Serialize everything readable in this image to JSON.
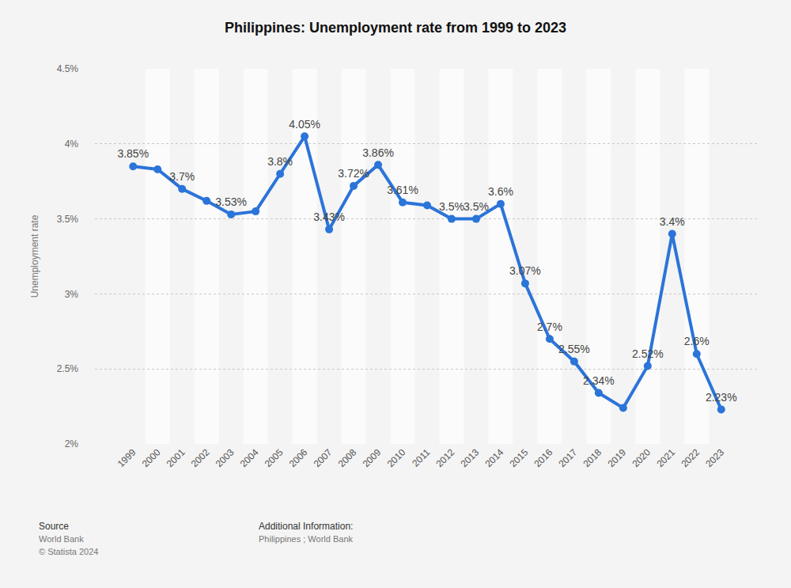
{
  "chart_data": {
    "type": "line",
    "title": "Philippines: Unemployment rate from 1999 to 2023",
    "y_label": "Unemployment rate",
    "categories": [
      "1999",
      "2000",
      "2001",
      "2002",
      "2003",
      "2004",
      "2005",
      "2006",
      "2007",
      "2008",
      "2009",
      "2010",
      "2011",
      "2012",
      "2013",
      "2014",
      "2015",
      "2016",
      "2017",
      "2018",
      "2019",
      "2020",
      "2021",
      "2022",
      "2023"
    ],
    "values": [
      3.85,
      3.83,
      3.7,
      3.62,
      3.53,
      3.55,
      3.8,
      4.05,
      3.43,
      3.72,
      3.86,
      3.61,
      3.59,
      3.5,
      3.5,
      3.6,
      3.07,
      2.7,
      2.55,
      2.34,
      2.24,
      2.52,
      3.4,
      2.6,
      2.23
    ],
    "value_labels": [
      "3.85%",
      null,
      "3.7%",
      null,
      "3.53%",
      null,
      "3.8%",
      "4.05%",
      "3.43%",
      "3.72%",
      "3.86%",
      "3.61%",
      null,
      "3.5%",
      "3.5%",
      "3.6%",
      "3.07%",
      "2.7%",
      "2.55%",
      "2.34%",
      null,
      "2.52%",
      "3.4%",
      "2.6%",
      "2.23%"
    ],
    "data_labels": true,
    "color": "#2b74d9",
    "marker": "circle",
    "line_style": "solid",
    "grid": true,
    "ylim": [
      2,
      4.5
    ],
    "yticks": [
      {
        "value": 2,
        "label": "2%"
      },
      {
        "value": 2.5,
        "label": "2.5%"
      },
      {
        "value": 3,
        "label": "3%"
      },
      {
        "value": 3.5,
        "label": "3.5%"
      },
      {
        "value": 4,
        "label": "4%"
      },
      {
        "value": 4.5,
        "label": "4.5%"
      }
    ],
    "notes": [
      {
        "heading": "Source",
        "lines": [
          "World Bank",
          "© Statista 2024"
        ]
      },
      {
        "heading": "Additional Information:",
        "lines": [
          "Philippines ; World Bank"
        ]
      }
    ]
  }
}
